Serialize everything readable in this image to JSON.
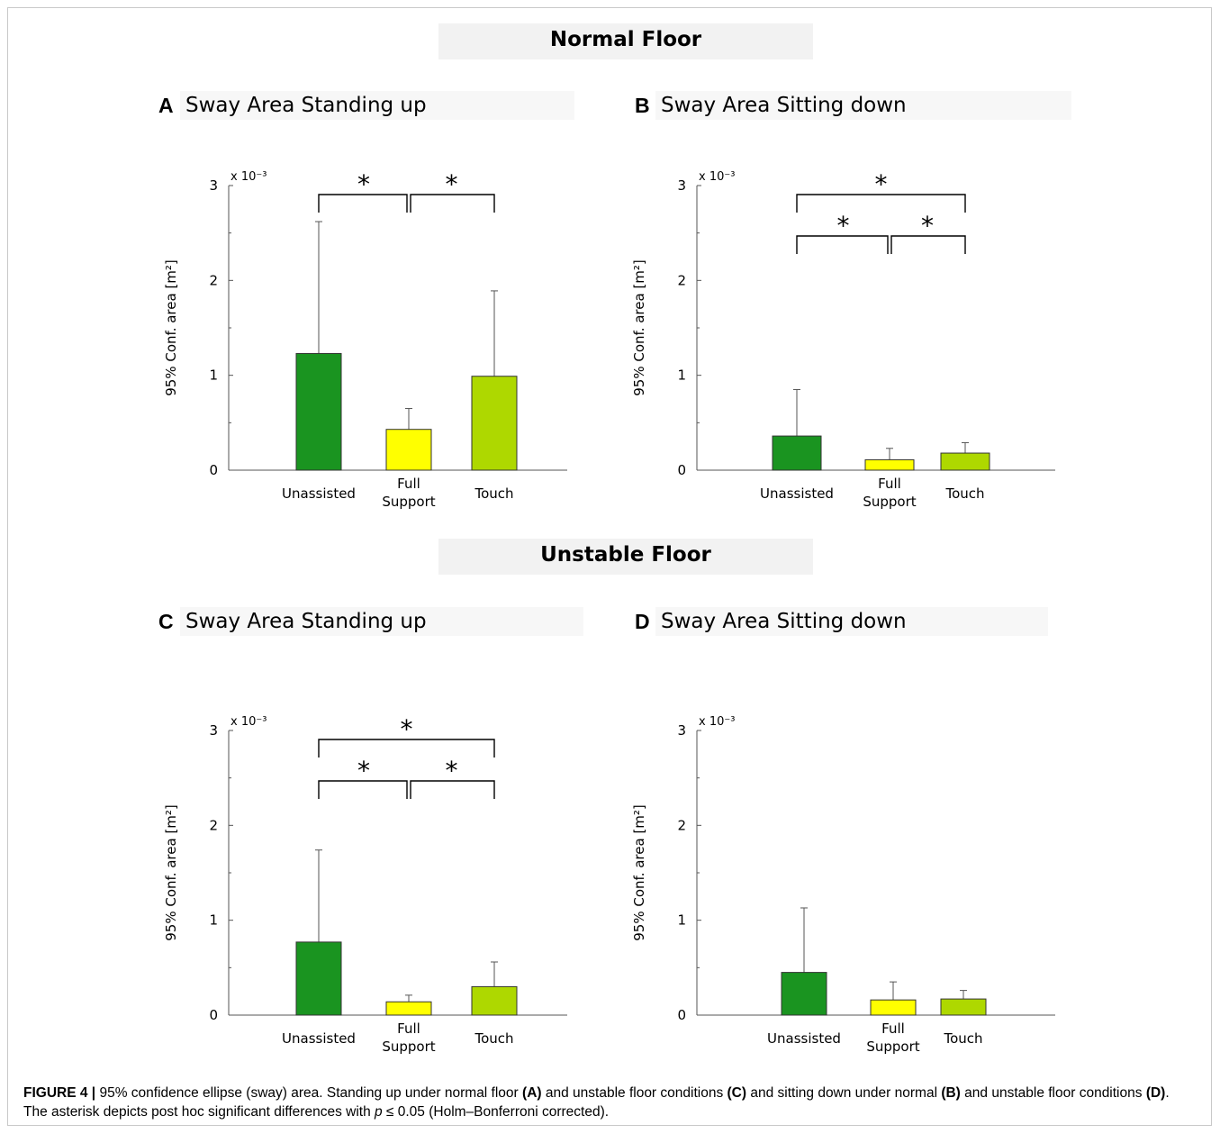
{
  "sections": {
    "normal": "Normal Floor",
    "unstable": "Unstable Floor"
  },
  "colors": {
    "unassisted": "#1a9420",
    "full_support": "#ffff00",
    "touch": "#aed800"
  },
  "chart_data": [
    {
      "type": "bar",
      "panel": "A",
      "title": "Sway Area Standing up",
      "ylabel": "95% Conf. area [m²]",
      "exponent_label": "x 10⁻³",
      "ylim": [
        0,
        3
      ],
      "yticks": [
        "0",
        "1",
        "2",
        "3"
      ],
      "categories": [
        [
          "Unassisted"
        ],
        [
          "Full",
          "Support"
        ],
        [
          "Touch"
        ]
      ],
      "values": [
        1.23,
        0.43,
        0.99
      ],
      "errors": [
        1.39,
        0.22,
        0.9
      ],
      "significance": [
        {
          "from": 0,
          "to": 1,
          "label": "*"
        },
        {
          "from": 1,
          "to": 2,
          "label": "*"
        }
      ]
    },
    {
      "type": "bar",
      "panel": "B",
      "title": "Sway Area Sitting down",
      "ylabel": "95% Conf. area [m²]",
      "exponent_label": "x 10⁻³",
      "ylim": [
        0,
        3
      ],
      "yticks": [
        "0",
        "1",
        "2",
        "3"
      ],
      "categories": [
        [
          "Unassisted"
        ],
        [
          "Full",
          "Support"
        ],
        [
          "Touch"
        ]
      ],
      "values": [
        0.36,
        0.11,
        0.18
      ],
      "errors": [
        0.49,
        0.12,
        0.11
      ],
      "significance": [
        {
          "from": 0,
          "to": 1,
          "label": "*"
        },
        {
          "from": 1,
          "to": 2,
          "label": "*"
        },
        {
          "from": 0,
          "to": 2,
          "label": "*"
        }
      ]
    },
    {
      "type": "bar",
      "panel": "C",
      "title": "Sway Area Standing up",
      "ylabel": "95% Conf. area [m²]",
      "exponent_label": "x 10⁻³",
      "ylim": [
        0,
        3
      ],
      "yticks": [
        "0",
        "1",
        "2",
        "3"
      ],
      "categories": [
        [
          "Unassisted"
        ],
        [
          "Full",
          "Support"
        ],
        [
          "Touch"
        ]
      ],
      "values": [
        0.77,
        0.14,
        0.3
      ],
      "errors": [
        0.97,
        0.07,
        0.26
      ],
      "significance": [
        {
          "from": 0,
          "to": 1,
          "label": "*"
        },
        {
          "from": 1,
          "to": 2,
          "label": "*"
        },
        {
          "from": 0,
          "to": 2,
          "label": "*"
        }
      ]
    },
    {
      "type": "bar",
      "panel": "D",
      "title": "Sway Area Sitting down",
      "ylabel": "95% Conf. area [m²]",
      "exponent_label": "x 10⁻³",
      "ylim": [
        0,
        3
      ],
      "yticks": [
        "0",
        "1",
        "2",
        "3"
      ],
      "categories": [
        [
          "Unassisted"
        ],
        [
          "Full",
          "Support"
        ],
        [
          "Touch"
        ]
      ],
      "values": [
        0.45,
        0.16,
        0.17
      ],
      "errors": [
        0.68,
        0.19,
        0.09
      ],
      "significance": []
    }
  ],
  "caption": {
    "label": "FIGURE 4 |",
    "t1": " 95% confidence ellipse (sway) area. Standing up under normal floor ",
    "a": "(A)",
    "t2": " and unstable floor conditions ",
    "c": "(C)",
    "t3": " and sitting down under normal ",
    "b": "(B)",
    "t4": " and unstable floor conditions ",
    "d": "(D)",
    "t5": ". The asterisk depicts post hoc significant differences with ",
    "p": "p",
    "t6": " ≤ 0.05 (Holm–Bonferroni corrected)."
  }
}
